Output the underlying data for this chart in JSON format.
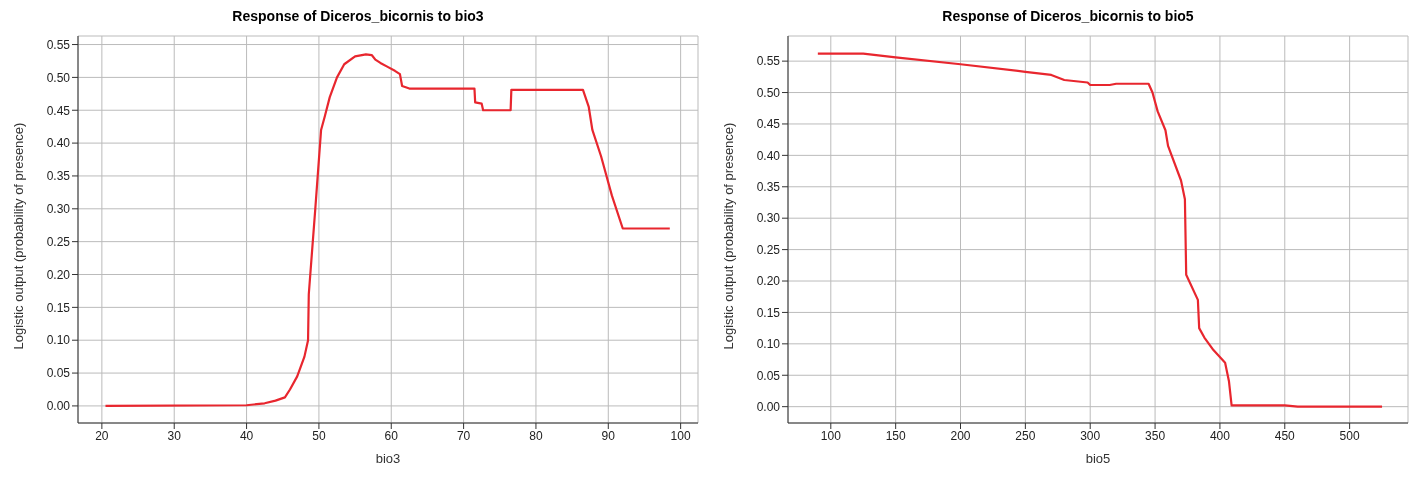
{
  "chart_data": [
    {
      "type": "line",
      "title": "Response of Diceros_bicornis to bio3",
      "xlabel": "bio3",
      "ylabel": "Logistic output (probability of presence)",
      "grid": true,
      "legend": false,
      "marker": "none",
      "line_style": "solid",
      "xlim": [
        16.7,
        102.4
      ],
      "xticks": [
        20,
        30,
        40,
        50,
        60,
        70,
        80,
        90,
        100
      ],
      "ylim": [
        -0.026,
        0.563
      ],
      "yticks": [
        {
          "value": 0,
          "label": "0.00"
        },
        {
          "value": 0.05,
          "label": "0.05"
        },
        {
          "value": 0.1,
          "label": "0.10"
        },
        {
          "value": 0.15,
          "label": "0.15"
        },
        {
          "value": 0.2,
          "label": "0.20"
        },
        {
          "value": 0.25,
          "label": "0.25"
        },
        {
          "value": 0.3,
          "label": "0.30"
        },
        {
          "value": 0.35,
          "label": "0.35"
        },
        {
          "value": 0.4,
          "label": "0.40"
        },
        {
          "value": 0.45,
          "label": "0.45"
        },
        {
          "value": 0.5,
          "label": "0.50"
        },
        {
          "value": 0.55,
          "label": "0.55"
        }
      ],
      "series": [
        {
          "color": "#e8262e",
          "x": [
            20.5,
            40,
            42.5,
            44,
            45.3,
            46,
            47,
            48,
            48.5,
            48.6,
            49.5,
            50.3,
            50.8,
            51.5,
            52.5,
            53.5,
            55,
            56.5,
            57.3,
            57.8,
            58.5,
            59.5,
            60.5,
            61.2,
            61.5,
            62.5,
            71.5,
            71.6,
            72.5,
            72.7,
            76.5,
            76.6,
            86.5,
            87.3,
            87.8,
            89,
            90.5,
            92,
            98.5
          ],
          "values": [
            0,
            0.001,
            0.004,
            0.008,
            0.013,
            0.025,
            0.045,
            0.075,
            0.1,
            0.17,
            0.3,
            0.42,
            0.44,
            0.47,
            0.5,
            0.52,
            0.532,
            0.535,
            0.534,
            0.527,
            0.522,
            0.516,
            0.51,
            0.505,
            0.487,
            0.483,
            0.483,
            0.462,
            0.46,
            0.45,
            0.45,
            0.481,
            0.481,
            0.455,
            0.42,
            0.38,
            0.32,
            0.27,
            0.27
          ]
        }
      ]
    },
    {
      "type": "line",
      "title": "Response of Diceros_bicornis to bio5",
      "xlabel": "bio5",
      "ylabel": "Logistic output (probability of presence)",
      "grid": true,
      "legend": false,
      "marker": "none",
      "line_style": "solid",
      "xlim": [
        67,
        545
      ],
      "xticks": [
        100,
        150,
        200,
        250,
        300,
        350,
        400,
        450,
        500
      ],
      "ylim": [
        -0.026,
        0.59
      ],
      "yticks": [
        {
          "value": 0,
          "label": "0.00"
        },
        {
          "value": 0.05,
          "label": "0.05"
        },
        {
          "value": 0.1,
          "label": "0.10"
        },
        {
          "value": 0.15,
          "label": "0.15"
        },
        {
          "value": 0.2,
          "label": "0.20"
        },
        {
          "value": 0.25,
          "label": "0.25"
        },
        {
          "value": 0.3,
          "label": "0.30"
        },
        {
          "value": 0.35,
          "label": "0.35"
        },
        {
          "value": 0.4,
          "label": "0.40"
        },
        {
          "value": 0.45,
          "label": "0.45"
        },
        {
          "value": 0.5,
          "label": "0.50"
        },
        {
          "value": 0.55,
          "label": "0.55"
        }
      ],
      "series": [
        {
          "color": "#e8262e",
          "x": [
            90,
            125,
            150,
            200,
            250,
            270,
            280,
            298,
            300,
            315,
            320,
            345,
            348,
            352,
            358,
            360,
            370,
            373,
            374,
            383,
            384,
            388,
            395,
            404,
            407,
            409,
            450,
            460,
            525
          ],
          "values": [
            0.562,
            0.562,
            0.556,
            0.545,
            0.533,
            0.528,
            0.52,
            0.516,
            0.512,
            0.512,
            0.514,
            0.514,
            0.5,
            0.47,
            0.44,
            0.415,
            0.36,
            0.33,
            0.21,
            0.17,
            0.125,
            0.11,
            0.09,
            0.07,
            0.04,
            0.002,
            0.002,
            0,
            0
          ]
        }
      ]
    }
  ]
}
